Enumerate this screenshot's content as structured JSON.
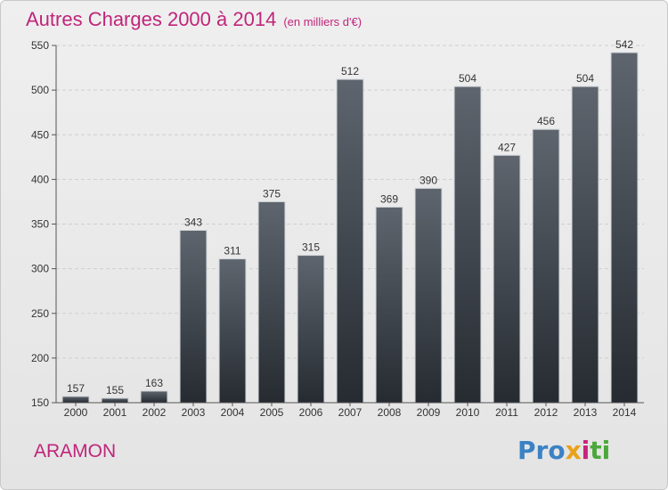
{
  "chart_data": {
    "type": "bar",
    "title": "Autres Charges 2000 à 2014",
    "subtitle": "(en milliers d'€)",
    "categories": [
      "2000",
      "2001",
      "2002",
      "2003",
      "2004",
      "2005",
      "2006",
      "2007",
      "2008",
      "2009",
      "2010",
      "2011",
      "2012",
      "2013",
      "2014"
    ],
    "values": [
      157,
      155,
      163,
      343,
      311,
      375,
      315,
      512,
      369,
      390,
      504,
      427,
      456,
      504,
      542
    ],
    "ylim": [
      150,
      550
    ],
    "yticks": [
      150,
      200,
      250,
      300,
      350,
      400,
      450,
      500,
      550
    ],
    "grid": true,
    "bar_color": "#3a4048"
  },
  "footer": {
    "town": "ARAMON",
    "logo_parts": [
      "Pro",
      "x",
      "i",
      "ti"
    ]
  }
}
